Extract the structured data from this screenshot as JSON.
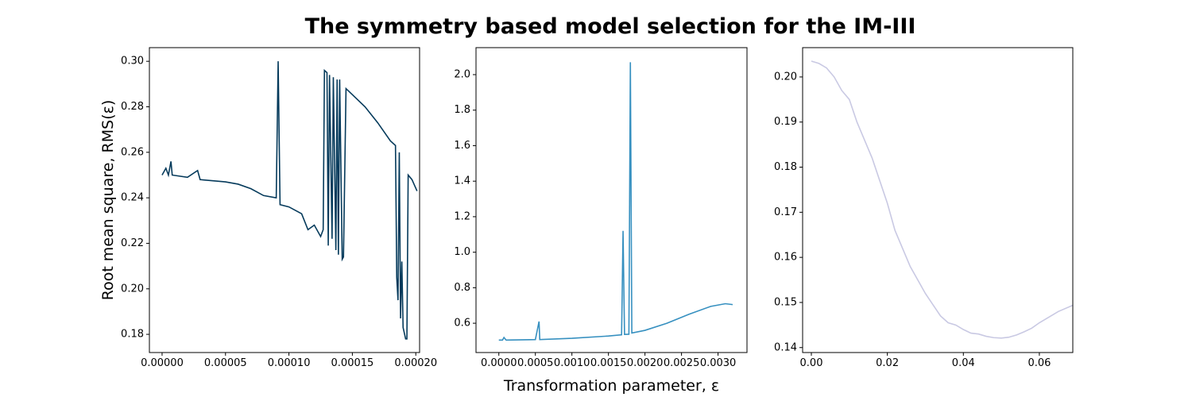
{
  "title": "The symmetry based model selection for the IM-III",
  "chart_data": [
    {
      "type": "line",
      "ylabel": "Root mean square, RMS(ε)",
      "color": "#053a5b",
      "x": [
        0,
        3e-06,
        5e-06,
        7e-06,
        8e-06,
        2e-05,
        2.8e-05,
        3e-05,
        5e-05,
        6e-05,
        7e-05,
        8e-05,
        9e-05,
        9.15e-05,
        9.3e-05,
        0.0001,
        0.00011,
        0.000115,
        0.00012,
        0.000125,
        0.000127,
        0.000128,
        0.00013,
        0.000131,
        0.000132,
        0.000134,
        0.000135,
        0.000137,
        0.000138,
        0.000139,
        0.00014,
        0.000142,
        0.000143,
        0.000145,
        0.00016,
        0.00017,
        0.00018,
        0.000184,
        0.000185,
        0.000186,
        0.000187,
        0.000188,
        0.000189,
        0.00019,
        0.000192,
        0.000193,
        0.000194,
        0.000197,
        0.000201
      ],
      "values": [
        0.25,
        0.253,
        0.25,
        0.256,
        0.25,
        0.249,
        0.252,
        0.248,
        0.247,
        0.246,
        0.244,
        0.241,
        0.24,
        0.3,
        0.237,
        0.236,
        0.233,
        0.226,
        0.228,
        0.223,
        0.226,
        0.296,
        0.295,
        0.219,
        0.294,
        0.222,
        0.293,
        0.217,
        0.292,
        0.215,
        0.292,
        0.213,
        0.214,
        0.288,
        0.28,
        0.273,
        0.265,
        0.263,
        0.205,
        0.195,
        0.26,
        0.187,
        0.212,
        0.183,
        0.178,
        0.178,
        0.25,
        0.248,
        0.243
      ],
      "xlim": [
        -1e-05,
        0.000203
      ],
      "ylim": [
        0.172,
        0.306
      ],
      "xticks": [
        {
          "value": 0,
          "label": "0.00000"
        },
        {
          "value": 5e-05,
          "label": "0.00005"
        },
        {
          "value": 0.0001,
          "label": "0.00010"
        },
        {
          "value": 0.00015,
          "label": "0.00015"
        },
        {
          "value": 0.0002,
          "label": "0.00020"
        }
      ],
      "yticks": [
        {
          "value": 0.18,
          "label": "0.18"
        },
        {
          "value": 0.2,
          "label": "0.20"
        },
        {
          "value": 0.22,
          "label": "0.22"
        },
        {
          "value": 0.24,
          "label": "0.24"
        },
        {
          "value": 0.26,
          "label": "0.26"
        },
        {
          "value": 0.28,
          "label": "0.28"
        },
        {
          "value": 0.3,
          "label": "0.30"
        }
      ]
    },
    {
      "type": "line",
      "xlabel": "Transformation parameter, ε",
      "color": "#3690c0",
      "x": [
        0,
        5e-05,
        7e-05,
        0.0001,
        0.0005,
        0.00055,
        0.00056,
        0.001,
        0.0015,
        0.00168,
        0.0017,
        0.00172,
        0.00178,
        0.0018,
        0.00182,
        0.002,
        0.0023,
        0.0026,
        0.0029,
        0.0031,
        0.0032
      ],
      "values": [
        0.505,
        0.505,
        0.52,
        0.505,
        0.508,
        0.61,
        0.508,
        0.515,
        0.528,
        0.535,
        1.12,
        0.537,
        0.538,
        2.07,
        0.545,
        0.56,
        0.6,
        0.65,
        0.695,
        0.71,
        0.705
      ],
      "xlim": [
        -0.0003125,
        0.003396
      ],
      "ylim": [
        0.435,
        2.152
      ],
      "xticks": [
        {
          "value": 0,
          "label": "0.0000"
        },
        {
          "value": 0.0005,
          "label": "0.0005"
        },
        {
          "value": 0.001,
          "label": "0.0010"
        },
        {
          "value": 0.0015,
          "label": "0.0015"
        },
        {
          "value": 0.002,
          "label": "0.0020"
        },
        {
          "value": 0.0025,
          "label": "0.0025"
        },
        {
          "value": 0.003,
          "label": "0.0030"
        }
      ],
      "yticks": [
        {
          "value": 0.6,
          "label": "0.6"
        },
        {
          "value": 0.8,
          "label": "0.8"
        },
        {
          "value": 1,
          "label": "1.0"
        },
        {
          "value": 1.2,
          "label": "1.2"
        },
        {
          "value": 1.4,
          "label": "1.4"
        },
        {
          "value": 1.6,
          "label": "1.6"
        },
        {
          "value": 1.8,
          "label": "1.8"
        },
        {
          "value": 2,
          "label": "2.0"
        }
      ]
    },
    {
      "type": "line",
      "color": "#c9c9e3",
      "x": [
        0,
        0.002,
        0.004,
        0.006,
        0.008,
        0.01,
        0.012,
        0.014,
        0.016,
        0.018,
        0.02,
        0.022,
        0.024,
        0.026,
        0.028,
        0.03,
        0.032,
        0.034,
        0.036,
        0.038,
        0.04,
        0.042,
        0.044,
        0.046,
        0.048,
        0.05,
        0.052,
        0.054,
        0.056,
        0.058,
        0.06,
        0.065,
        0.07,
        0.0755
      ],
      "values": [
        0.2035,
        0.203,
        0.202,
        0.2,
        0.197,
        0.195,
        0.19,
        0.186,
        0.182,
        0.177,
        0.172,
        0.166,
        0.162,
        0.158,
        0.155,
        0.152,
        0.1495,
        0.147,
        0.1455,
        0.145,
        0.144,
        0.1432,
        0.143,
        0.1425,
        0.1422,
        0.1421,
        0.1423,
        0.1428,
        0.1435,
        0.1443,
        0.1455,
        0.148,
        0.1498,
        0.1512
      ],
      "xlim": [
        -0.0023,
        0.0688
      ],
      "ylim": [
        0.1389,
        0.2065
      ],
      "xticks": [
        {
          "value": 0,
          "label": "0.00"
        },
        {
          "value": 0.02,
          "label": "0.02"
        },
        {
          "value": 0.04,
          "label": "0.04"
        },
        {
          "value": 0.06,
          "label": "0.06"
        }
      ],
      "yticks": [
        {
          "value": 0.14,
          "label": "0.14"
        },
        {
          "value": 0.15,
          "label": "0.15"
        },
        {
          "value": 0.16,
          "label": "0.16"
        },
        {
          "value": 0.17,
          "label": "0.17"
        },
        {
          "value": 0.18,
          "label": "0.18"
        },
        {
          "value": 0.19,
          "label": "0.19"
        },
        {
          "value": 0.2,
          "label": "0.20"
        }
      ]
    }
  ]
}
